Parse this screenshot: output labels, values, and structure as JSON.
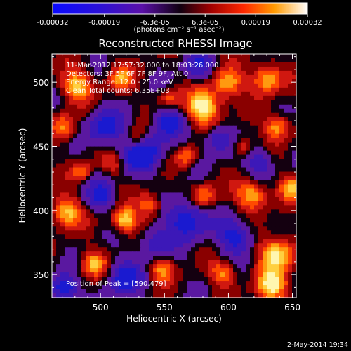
{
  "colorbar": {
    "ticks": [
      "-0.00032",
      "-0.00019",
      "-6.3e-05",
      "6.3e-05",
      "0.00019",
      "0.00032"
    ],
    "tick_values": [
      -0.00032,
      -0.00019,
      -6.3e-05,
      6.3e-05,
      0.00019,
      0.00032
    ],
    "range": [
      -0.00032,
      0.00032
    ],
    "units": "(photons cm⁻² s⁻¹ asec⁻²)"
  },
  "chart_data": {
    "type": "heatmap",
    "title": "Reconstructed RHESSI Image",
    "xlabel": "Heliocentric X (arcsec)",
    "ylabel": "Heliocentric Y (arcsec)",
    "xlim": [
      462,
      653
    ],
    "ylim": [
      332,
      522
    ],
    "xticks": [
      500,
      550,
      600,
      650
    ],
    "yticks": [
      350,
      400,
      450,
      500
    ],
    "peak": [
      590,
      479
    ],
    "colormap": "RHESSI std gamma II",
    "colors": {
      "blue": "#1020d0",
      "purple": "#5a18a8",
      "red": "#d81818",
      "orange": "#ff8a00",
      "yellow": "#fff28a"
    }
  },
  "annotations": {
    "time": "11-Mar-2012 17:57:32.000 to 18:03:26.000",
    "detectors": "Detectors: 3F 5F 6F 7F 8F 9F, Att 0",
    "energy": "Energy Range: 12.0 - 25.0 keV",
    "clean": "Clean    Total counts: 6.35E+03",
    "peak_text": "Position of Peak = [590,479]"
  },
  "footer": {
    "date": "2-May-2014 19:34"
  }
}
